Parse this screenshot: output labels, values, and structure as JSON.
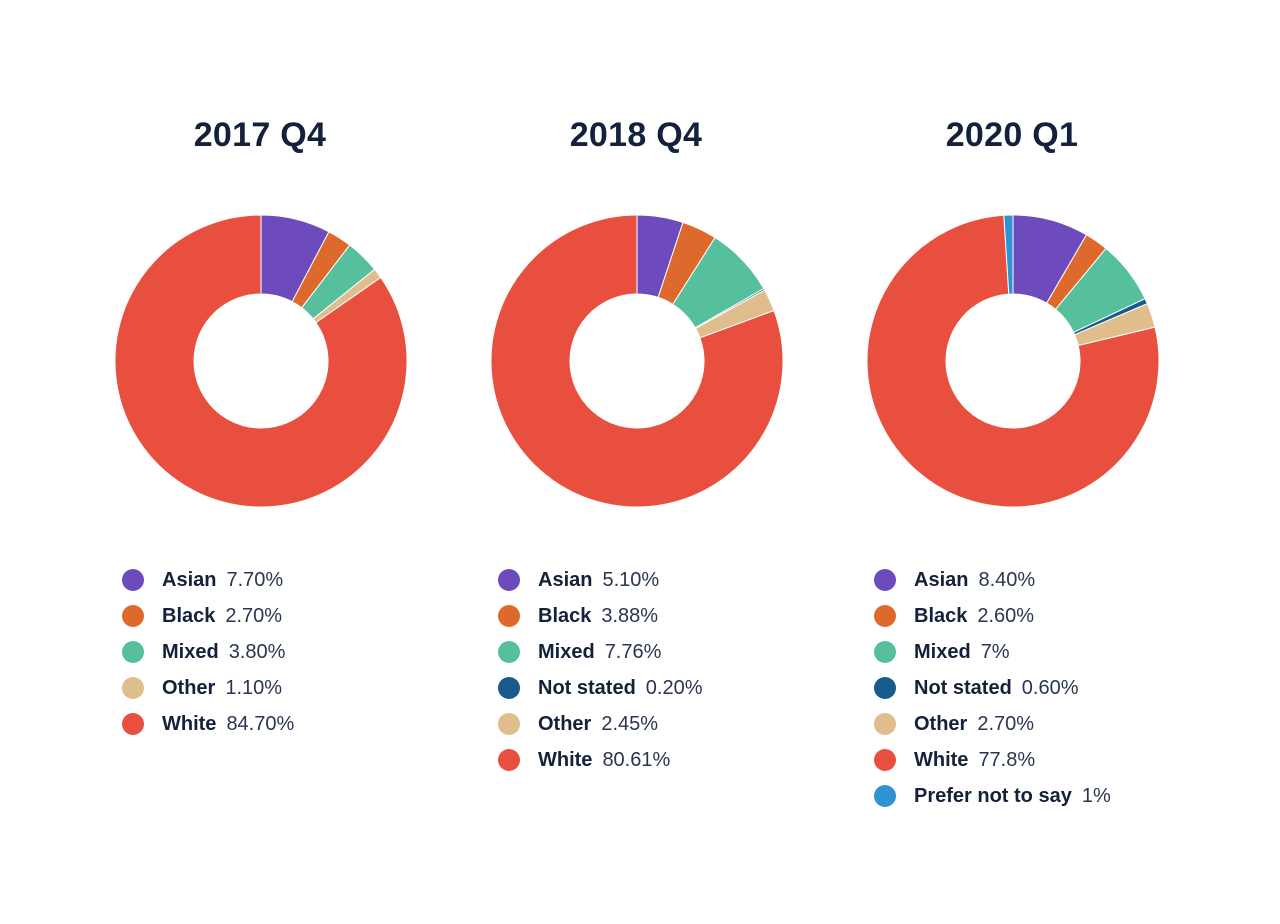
{
  "chart_data": [
    {
      "type": "pie",
      "title": "2017 Q4",
      "slices": [
        {
          "label": "Asian",
          "value": 7.7,
          "display": "7.70%",
          "color": "#6e4bbd"
        },
        {
          "label": "Black",
          "value": 2.7,
          "display": "2.70%",
          "color": "#dd6a2c"
        },
        {
          "label": "Mixed",
          "value": 3.8,
          "display": "3.80%",
          "color": "#56bf9b"
        },
        {
          "label": "Other",
          "value": 1.1,
          "display": "1.10%",
          "color": "#dfbd8c"
        },
        {
          "label": "White",
          "value": 84.7,
          "display": "84.70%",
          "color": "#e84f3f"
        }
      ]
    },
    {
      "type": "pie",
      "title": "2018 Q4",
      "slices": [
        {
          "label": "Asian",
          "value": 5.1,
          "display": "5.10%",
          "color": "#6e4bbd"
        },
        {
          "label": "Black",
          "value": 3.88,
          "display": "3.88%",
          "color": "#dd6a2c"
        },
        {
          "label": "Mixed",
          "value": 7.76,
          "display": "7.76%",
          "color": "#56bf9b"
        },
        {
          "label": "Not stated",
          "value": 0.2,
          "display": "0.20%",
          "color": "#175a8c"
        },
        {
          "label": "Other",
          "value": 2.45,
          "display": "2.45%",
          "color": "#dfbd8c"
        },
        {
          "label": "White",
          "value": 80.61,
          "display": "80.61%",
          "color": "#e84f3f"
        }
      ]
    },
    {
      "type": "pie",
      "title": "2020 Q1",
      "slices": [
        {
          "label": "Asian",
          "value": 8.4,
          "display": "8.40%",
          "color": "#6e4bbd"
        },
        {
          "label": "Black",
          "value": 2.6,
          "display": "2.60%",
          "color": "#dd6a2c"
        },
        {
          "label": "Mixed",
          "value": 7,
          "display": "7%",
          "color": "#56bf9b"
        },
        {
          "label": "Not stated",
          "value": 0.6,
          "display": "0.60%",
          "color": "#175a8c"
        },
        {
          "label": "Other",
          "value": 2.7,
          "display": "2.70%",
          "color": "#dfbd8c"
        },
        {
          "label": "White",
          "value": 77.8,
          "display": "77.8%",
          "color": "#e84f3f"
        },
        {
          "label": "Prefer not to say",
          "value": 1,
          "display": "1%",
          "color": "#2d93d1"
        }
      ]
    }
  ]
}
